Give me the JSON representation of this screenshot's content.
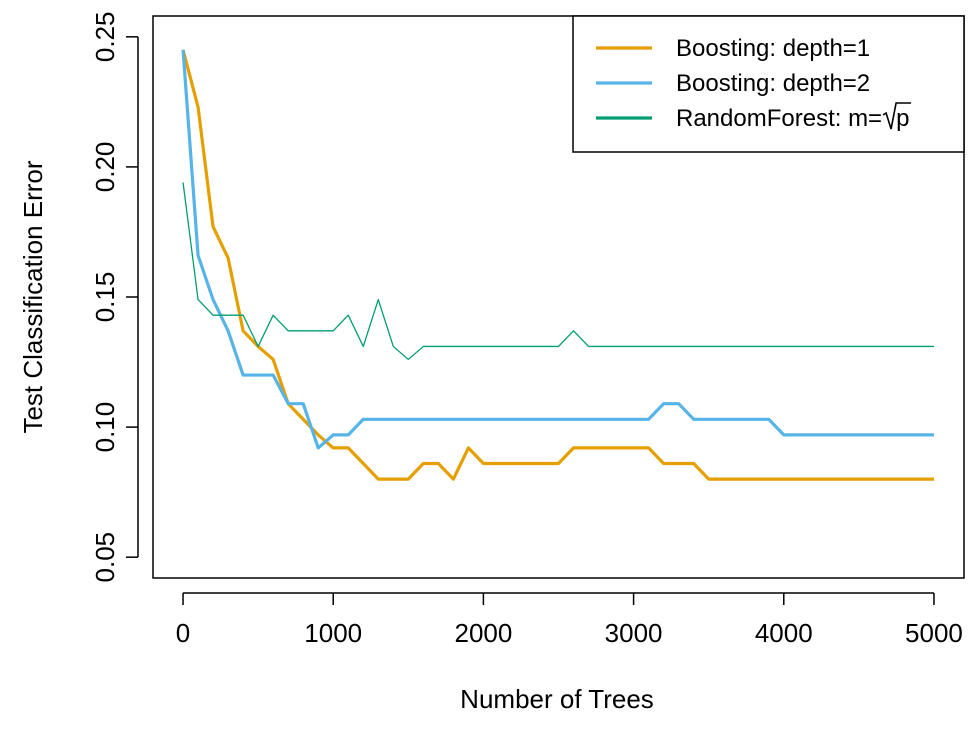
{
  "chart_data": {
    "type": "line",
    "title": "",
    "xlabel": "Number of Trees",
    "ylabel": "Test Classification Error",
    "xlim": [
      -200,
      5200
    ],
    "ylim": [
      0.042,
      0.258
    ],
    "x_ticks": [
      0,
      1000,
      2000,
      3000,
      4000,
      5000
    ],
    "x_tick_labels": [
      "0",
      "1000",
      "2000",
      "3000",
      "4000",
      "5000"
    ],
    "y_ticks": [
      0.05,
      0.1,
      0.15,
      0.2,
      0.25
    ],
    "y_tick_labels": [
      "0.05",
      "0.10",
      "0.15",
      "0.20",
      "0.25"
    ],
    "grid": false,
    "legend_position": "top-right",
    "series": [
      {
        "name": "Boosting: depth=1",
        "color": "#E69F00",
        "line_width": "thick",
        "x": [
          0,
          100,
          200,
          300,
          400,
          500,
          600,
          700,
          800,
          900,
          1000,
          1100,
          1200,
          1300,
          1400,
          1500,
          1600,
          1700,
          1800,
          1900,
          2000,
          2500,
          2600,
          3100,
          3200,
          3400,
          3500,
          5000
        ],
        "y": [
          0.245,
          0.223,
          0.177,
          0.165,
          0.137,
          0.131,
          0.126,
          0.109,
          0.103,
          0.097,
          0.092,
          0.092,
          0.086,
          0.08,
          0.08,
          0.08,
          0.086,
          0.086,
          0.08,
          0.092,
          0.086,
          0.086,
          0.092,
          0.092,
          0.086,
          0.086,
          0.08,
          0.08
        ]
      },
      {
        "name": "Boosting: depth=2",
        "color": "#56B4E9",
        "line_width": "thick",
        "x": [
          0,
          100,
          200,
          300,
          400,
          500,
          600,
          700,
          800,
          900,
          1000,
          1100,
          1200,
          1300,
          3100,
          3200,
          3300,
          3400,
          3900,
          4000,
          5000
        ],
        "y": [
          0.245,
          0.166,
          0.149,
          0.137,
          0.12,
          0.12,
          0.12,
          0.109,
          0.109,
          0.092,
          0.097,
          0.097,
          0.103,
          0.103,
          0.103,
          0.109,
          0.109,
          0.103,
          0.103,
          0.097,
          0.097
        ]
      },
      {
        "name": "RandomForest: m=√p",
        "legend_label_prefix": "RandomForest: m=",
        "legend_label_radicand": "p",
        "color": "#009E73",
        "line_width": "thin",
        "x": [
          0,
          100,
          200,
          300,
          400,
          500,
          600,
          700,
          800,
          900,
          1000,
          1100,
          1200,
          1300,
          1400,
          1500,
          1600,
          2500,
          2600,
          2700,
          5000
        ],
        "y": [
          0.194,
          0.149,
          0.143,
          0.143,
          0.143,
          0.131,
          0.143,
          0.137,
          0.137,
          0.137,
          0.137,
          0.143,
          0.131,
          0.149,
          0.131,
          0.126,
          0.131,
          0.131,
          0.137,
          0.131,
          0.131
        ]
      }
    ]
  }
}
